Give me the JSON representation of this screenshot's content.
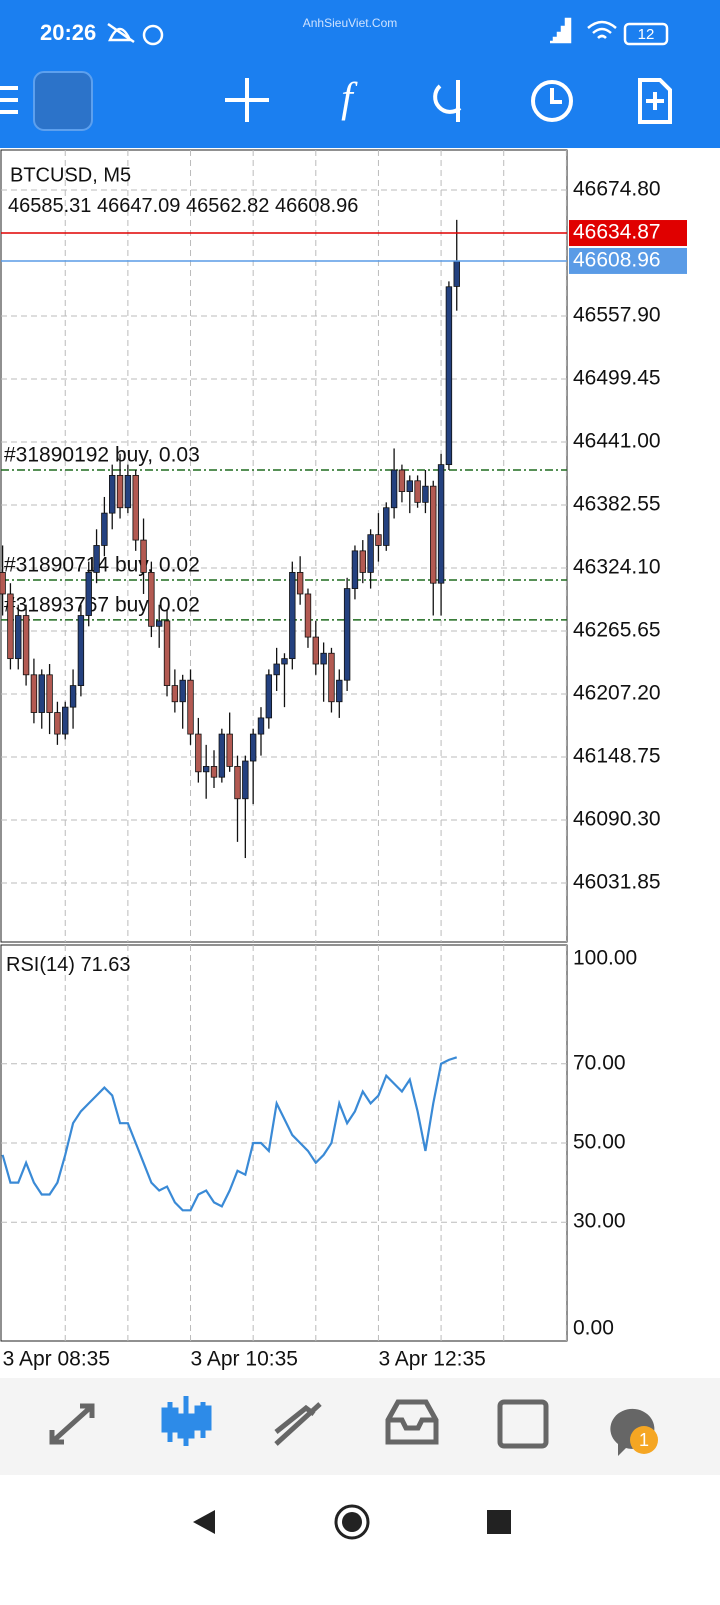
{
  "status_bar": {
    "time": "20:26",
    "battery": "12"
  },
  "watermark": "AnhSieuViet.Com",
  "nav_badge": "1",
  "chart_data": {
    "type": "candlestick",
    "title": "BTCUSD, M5",
    "colors": {
      "bull": "#24417f",
      "bear": "#b35a52",
      "ask": "#e00000",
      "bid": "#5a9be6",
      "order": "#1f6b1f",
      "rsi": "#3a8ad6"
    },
    "categories": [
      "3 Apr 08:35",
      null,
      null,
      null,
      null,
      null,
      null,
      null,
      null,
      null,
      null,
      null,
      null,
      null,
      null,
      null,
      null,
      null,
      null,
      null,
      null,
      null,
      null,
      null,
      "3 Apr 10:35",
      null,
      null,
      null,
      null,
      null,
      null,
      null,
      null,
      null,
      null,
      null,
      null,
      null,
      null,
      null,
      null,
      null,
      null,
      null,
      null,
      null,
      null,
      null,
      "3 Apr 12:35",
      null,
      null,
      null,
      null,
      null,
      null,
      null,
      null,
      null,
      null
    ],
    "open": [
      46320,
      46300,
      46240,
      46280,
      46225,
      46190,
      46225,
      46190,
      46170,
      46195,
      46215,
      46280,
      46320,
      46345,
      46375,
      46410,
      46380,
      46410,
      46350,
      46320,
      46270,
      46275,
      46215,
      46200,
      46220,
      46170,
      46135,
      46140,
      46130,
      46170,
      46140,
      46110,
      46145,
      46170,
      46185,
      46225,
      46235,
      46240,
      46320,
      46300,
      46260,
      46235,
      46245,
      46200,
      46220,
      46305,
      46340,
      46320,
      46355,
      46345,
      46380,
      46415,
      46395,
      46405,
      46385,
      46400,
      46310,
      46420,
      46585.31
    ],
    "high": [
      46345,
      46310,
      46290,
      46290,
      46240,
      46230,
      46235,
      46200,
      46200,
      46230,
      46290,
      46330,
      46360,
      46390,
      46420,
      46430,
      46420,
      46415,
      46370,
      46330,
      46290,
      46285,
      46230,
      46225,
      46230,
      46185,
      46160,
      46155,
      46175,
      46190,
      46150,
      46150,
      46175,
      46195,
      46230,
      46250,
      46245,
      46330,
      46335,
      46305,
      46275,
      46255,
      46250,
      46230,
      46315,
      46345,
      46350,
      46360,
      46375,
      46385,
      46435,
      46420,
      46410,
      46410,
      46415,
      46405,
      46430,
      46590,
      46647.09
    ],
    "low": [
      46280,
      46230,
      46230,
      46215,
      46180,
      46175,
      46170,
      46160,
      46165,
      46175,
      46205,
      46270,
      46310,
      46335,
      46360,
      46370,
      46375,
      46340,
      46300,
      46260,
      46250,
      46205,
      46190,
      46175,
      46160,
      46125,
      46110,
      46120,
      46125,
      46135,
      46070,
      46055,
      46105,
      46150,
      46175,
      46210,
      46195,
      46230,
      46290,
      46250,
      46225,
      46200,
      46190,
      46185,
      46210,
      46295,
      46310,
      46305,
      46330,
      46340,
      46370,
      46385,
      46375,
      46380,
      46375,
      46280,
      46280,
      46415,
      46562.82
    ],
    "close": [
      46300,
      46240,
      46280,
      46225,
      46190,
      46225,
      46190,
      46170,
      46195,
      46215,
      46280,
      46320,
      46345,
      46375,
      46410,
      46380,
      46410,
      46350,
      46320,
      46270,
      46275,
      46215,
      46200,
      46220,
      46170,
      46135,
      46140,
      46130,
      46170,
      46140,
      46110,
      46145,
      46170,
      46185,
      46225,
      46235,
      46240,
      46320,
      46300,
      46260,
      46235,
      46245,
      46200,
      46220,
      46305,
      46340,
      46320,
      46355,
      46345,
      46380,
      46415,
      46395,
      46405,
      46385,
      46400,
      46310,
      46420,
      46585,
      46608.96
    ],
    "ask": 46634.87,
    "orders": [
      {
        "label": "#31890192 buy, 0.03",
        "price": 46415
      },
      {
        "label": "#31890714 buy, 0.02",
        "price": 46313
      },
      {
        "label": "#31893767 buy, 0.02",
        "price": 46276
      }
    ],
    "ylim": [
      45977.1,
      46711.9
    ],
    "yticks": [
      {
        "value": 46674.8,
        "label": "46674.80"
      },
      {
        "value": 46557.9,
        "label": "46557.90"
      },
      {
        "value": 46499.45,
        "label": "46499.45"
      },
      {
        "value": 46441,
        "label": "46441.00"
      },
      {
        "value": 46382.55,
        "label": "46382.55"
      },
      {
        "value": 46324.1,
        "label": "46324.10"
      },
      {
        "value": 46265.65,
        "label": "46265.65"
      },
      {
        "value": 46207.2,
        "label": "46207.20"
      },
      {
        "value": 46148.75,
        "label": "46148.75"
      },
      {
        "value": 46090.3,
        "label": "46090.30"
      },
      {
        "value": 46031.85,
        "label": "46031.85"
      }
    ],
    "rsi": {
      "label": "RSI(14)",
      "values": [
        47,
        40,
        40,
        45,
        40,
        37,
        37,
        40,
        47,
        55,
        58,
        60,
        62,
        64,
        62,
        55,
        55,
        50,
        45,
        40,
        38,
        39,
        35,
        33,
        33,
        37,
        38,
        35,
        34,
        38,
        43,
        42,
        50,
        50,
        48,
        60,
        56,
        52,
        50,
        48,
        45,
        47,
        50,
        60,
        55,
        58,
        63,
        60,
        62,
        67,
        65,
        63,
        66,
        58,
        48,
        60,
        70,
        71,
        71.63
      ],
      "ylim": [
        0,
        100
      ],
      "yticks": [
        {
          "value": 100,
          "label": "100.00"
        },
        {
          "value": 70,
          "label": "70.00"
        },
        {
          "value": 50,
          "label": "50.00"
        },
        {
          "value": 30,
          "label": "30.00"
        },
        {
          "value": 0,
          "label": "0.00"
        }
      ]
    }
  }
}
